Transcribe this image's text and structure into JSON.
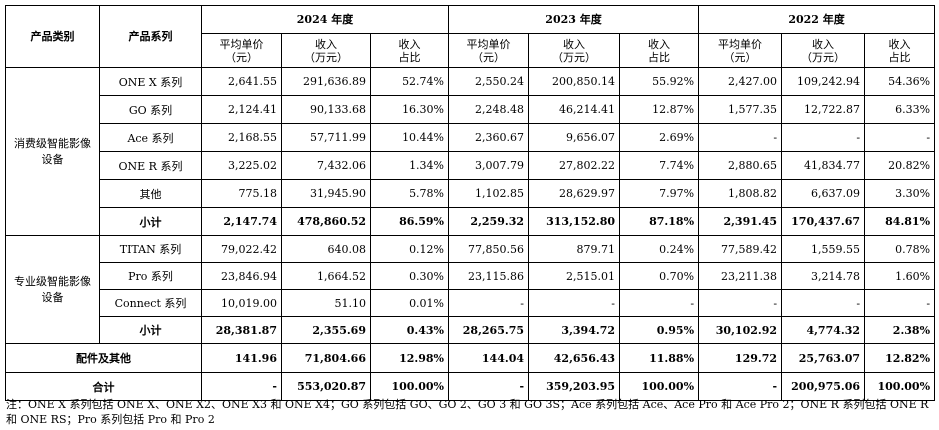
{
  "header": {
    "category": "产品类别",
    "series": "产品系列",
    "years": [
      "2024 年度",
      "2023 年度",
      "2022 年度"
    ],
    "price": "平均单价\n（元）",
    "revenue": "收入\n（万元）",
    "share": "收入\n占比"
  },
  "groups": [
    {
      "category": "消费级智能影像设备",
      "rows": [
        {
          "name": "ONE X 系列",
          "v": [
            "2,641.55",
            "291,636.89",
            "52.74%",
            "2,550.24",
            "200,850.14",
            "55.92%",
            "2,427.00",
            "109,242.94",
            "54.36%"
          ]
        },
        {
          "name": "GO 系列",
          "v": [
            "2,124.41",
            "90,133.68",
            "16.30%",
            "2,248.48",
            "46,214.41",
            "12.87%",
            "1,577.35",
            "12,722.87",
            "6.33%"
          ]
        },
        {
          "name": "Ace 系列",
          "v": [
            "2,168.55",
            "57,711.99",
            "10.44%",
            "2,360.67",
            "9,656.07",
            "2.69%",
            "-",
            "-",
            "-"
          ]
        },
        {
          "name": "ONE R 系列",
          "v": [
            "3,225.02",
            "7,432.06",
            "1.34%",
            "3,007.79",
            "27,802.22",
            "7.74%",
            "2,880.65",
            "41,834.77",
            "20.82%"
          ]
        },
        {
          "name": "其他",
          "v": [
            "775.18",
            "31,945.90",
            "5.78%",
            "1,102.85",
            "28,629.97",
            "7.97%",
            "1,808.82",
            "6,637.09",
            "3.30%"
          ]
        }
      ],
      "subtotal": {
        "name": "小计",
        "v": [
          "2,147.74",
          "478,860.52",
          "86.59%",
          "2,259.32",
          "313,152.80",
          "87.18%",
          "2,391.45",
          "170,437.67",
          "84.81%"
        ]
      }
    },
    {
      "category": "专业级智能影像设备",
      "rows": [
        {
          "name": "TITAN 系列",
          "v": [
            "79,022.42",
            "640.08",
            "0.12%",
            "77,850.56",
            "879.71",
            "0.24%",
            "77,589.42",
            "1,559.55",
            "0.78%"
          ]
        },
        {
          "name": "Pro 系列",
          "v": [
            "23,846.94",
            "1,664.52",
            "0.30%",
            "23,115.86",
            "2,515.01",
            "0.70%",
            "23,211.38",
            "3,214.78",
            "1.60%"
          ]
        },
        {
          "name": "Connect 系列",
          "v": [
            "10,019.00",
            "51.10",
            "0.01%",
            "-",
            "-",
            "-",
            "-",
            "-",
            "-"
          ]
        }
      ],
      "subtotal": {
        "name": "小计",
        "v": [
          "28,381.87",
          "2,355.69",
          "0.43%",
          "28,265.75",
          "3,394.72",
          "0.95%",
          "30,102.92",
          "4,774.32",
          "2.38%"
        ]
      }
    }
  ],
  "accessories": {
    "name": "配件及其他",
    "v": [
      "141.96",
      "71,804.66",
      "12.98%",
      "144.04",
      "42,656.43",
      "11.88%",
      "129.72",
      "25,763.07",
      "12.82%"
    ]
  },
  "total": {
    "name": "合计",
    "v": [
      "-",
      "553,020.87",
      "100.00%",
      "-",
      "359,203.95",
      "100.00%",
      "-",
      "200,975.06",
      "100.00%"
    ]
  },
  "note": "注：ONE X 系列包括 ONE X、ONE X2、ONE X3 和 ONE X4；GO 系列包括 GO、GO 2、GO 3 和 GO 3S；Ace 系列包括 Ace、Ace Pro 和 Ace Pro 2；ONE R 系列包括 ONE R 和 ONE RS；Pro 系列包括 Pro 和 Pro 2"
}
